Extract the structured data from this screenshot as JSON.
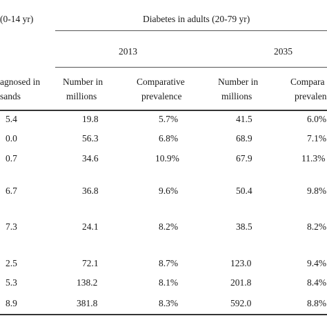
{
  "header": {
    "left_group": "(0-14 yr)",
    "right_group": "Diabetes in adults (20-79 yr)",
    "year_a": "2013",
    "year_b": "2035",
    "diag_line1": "agnosed in",
    "diag_line2": "sands",
    "num_line1": "Number in",
    "num_line2": "millions",
    "comp_line1": "Comparative",
    "comp_line2": "prevalence",
    "num_b_line1": "Number in",
    "num_b_line2": "millions",
    "comp_b_line1": "Compara",
    "comp_b_line2": "prevalen"
  },
  "rows": [
    {
      "diag": "5.4",
      "n2013": "19.8",
      "p2013": "5.7%",
      "n2035": "41.5",
      "p2035": "6.0%"
    },
    {
      "diag": "0.0",
      "n2013": "56.3",
      "p2013": "6.8%",
      "n2035": "68.9",
      "p2035": "7.1%"
    },
    {
      "diag": "0.7",
      "n2013": "34.6",
      "p2013": "10.9%",
      "n2035": "67.9",
      "p2035": "11.3%"
    },
    {
      "diag": "6.7",
      "n2013": "36.8",
      "p2013": "9.6%",
      "n2035": "50.4",
      "p2035": "9.8%"
    },
    {
      "diag": "7.3",
      "n2013": "24.1",
      "p2013": "8.2%",
      "n2035": "38.5",
      "p2035": "8.2%"
    },
    {
      "diag": "2.5",
      "n2013": "72.1",
      "p2013": "8.7%",
      "n2035": "123.0",
      "p2035": "9.4%"
    },
    {
      "diag": "5.3",
      "n2013": "138.2",
      "p2013": "8.1%",
      "n2035": "201.8",
      "p2035": "8.4%"
    },
    {
      "diag": "8.9",
      "n2013": "381.8",
      "p2013": "8.3%",
      "n2035": "592.0",
      "p2035": "8.8%"
    }
  ]
}
